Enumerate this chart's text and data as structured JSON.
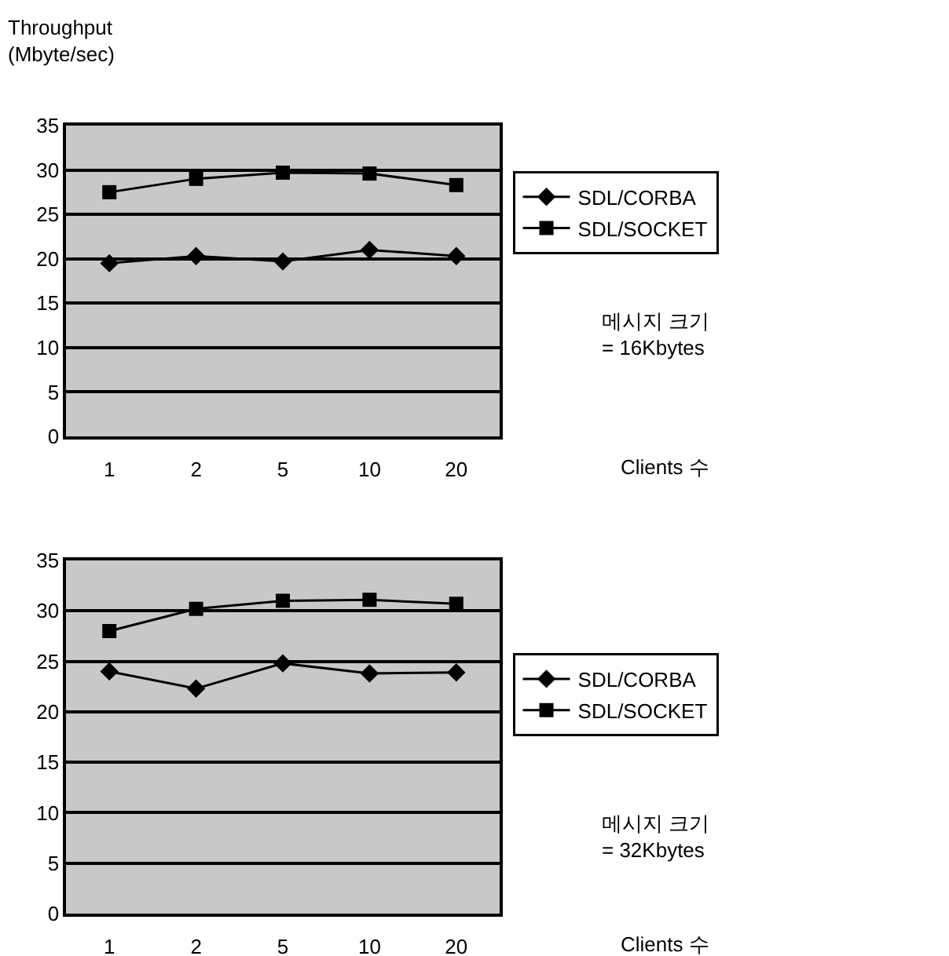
{
  "chart_data": [
    {
      "type": "line",
      "ylabel": "Throughput\n(Mbyte/sec)",
      "xlabel": "Clients 수",
      "categories": [
        "1",
        "2",
        "5",
        "10",
        "20"
      ],
      "ylim": [
        0,
        35
      ],
      "yticks": [
        0,
        5,
        10,
        15,
        20,
        25,
        30,
        35
      ],
      "grid": "y",
      "legend": "right",
      "annotations": [
        "메시지 크기\n= 16Kbytes"
      ],
      "series": [
        {
          "name": "SDL/CORBA",
          "color": "#000000",
          "marker": "diamond",
          "values": [
            19.5,
            20.3,
            19.7,
            21,
            20.3
          ]
        },
        {
          "name": "SDL/SOCKET",
          "color": "#000000",
          "marker": "square",
          "values": [
            27.5,
            29,
            29.7,
            29.6,
            28.3
          ]
        }
      ]
    },
    {
      "type": "line",
      "xlabel": "Clients 수",
      "categories": [
        "1",
        "2",
        "5",
        "10",
        "20"
      ],
      "ylim": [
        0,
        35
      ],
      "yticks": [
        0,
        5,
        10,
        15,
        20,
        25,
        30,
        35
      ],
      "grid": "y",
      "legend": "right",
      "annotations": [
        "메시지 크기\n= 32Kbytes"
      ],
      "series": [
        {
          "name": "SDL/CORBA",
          "color": "#000000",
          "marker": "diamond",
          "values": [
            24,
            22.3,
            24.8,
            23.8,
            23.9
          ]
        },
        {
          "name": "SDL/SOCKET",
          "color": "#000000",
          "marker": "square",
          "values": [
            28,
            30.2,
            31,
            31.1,
            30.7
          ]
        }
      ]
    }
  ]
}
